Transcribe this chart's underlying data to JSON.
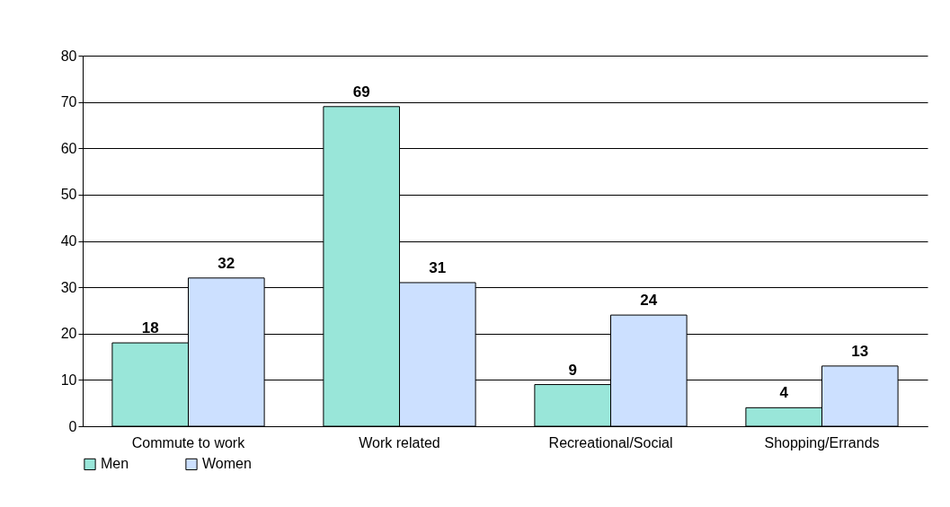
{
  "chart_data": {
    "type": "bar",
    "categories": [
      "Commute to work",
      "Work related",
      "Recreational/Social",
      "Shopping/Errands"
    ],
    "series": [
      {
        "name": "Men",
        "color": "#99e6d9",
        "values": [
          18,
          69,
          9,
          4
        ]
      },
      {
        "name": "Women",
        "color": "#cce0ff",
        "values": [
          32,
          31,
          24,
          13
        ]
      }
    ],
    "ylim": [
      0,
      80
    ],
    "yticks": [
      0,
      10,
      20,
      30,
      40,
      50,
      60,
      70,
      80
    ],
    "grid": "y",
    "legend": "bottom",
    "data_labels": true
  }
}
